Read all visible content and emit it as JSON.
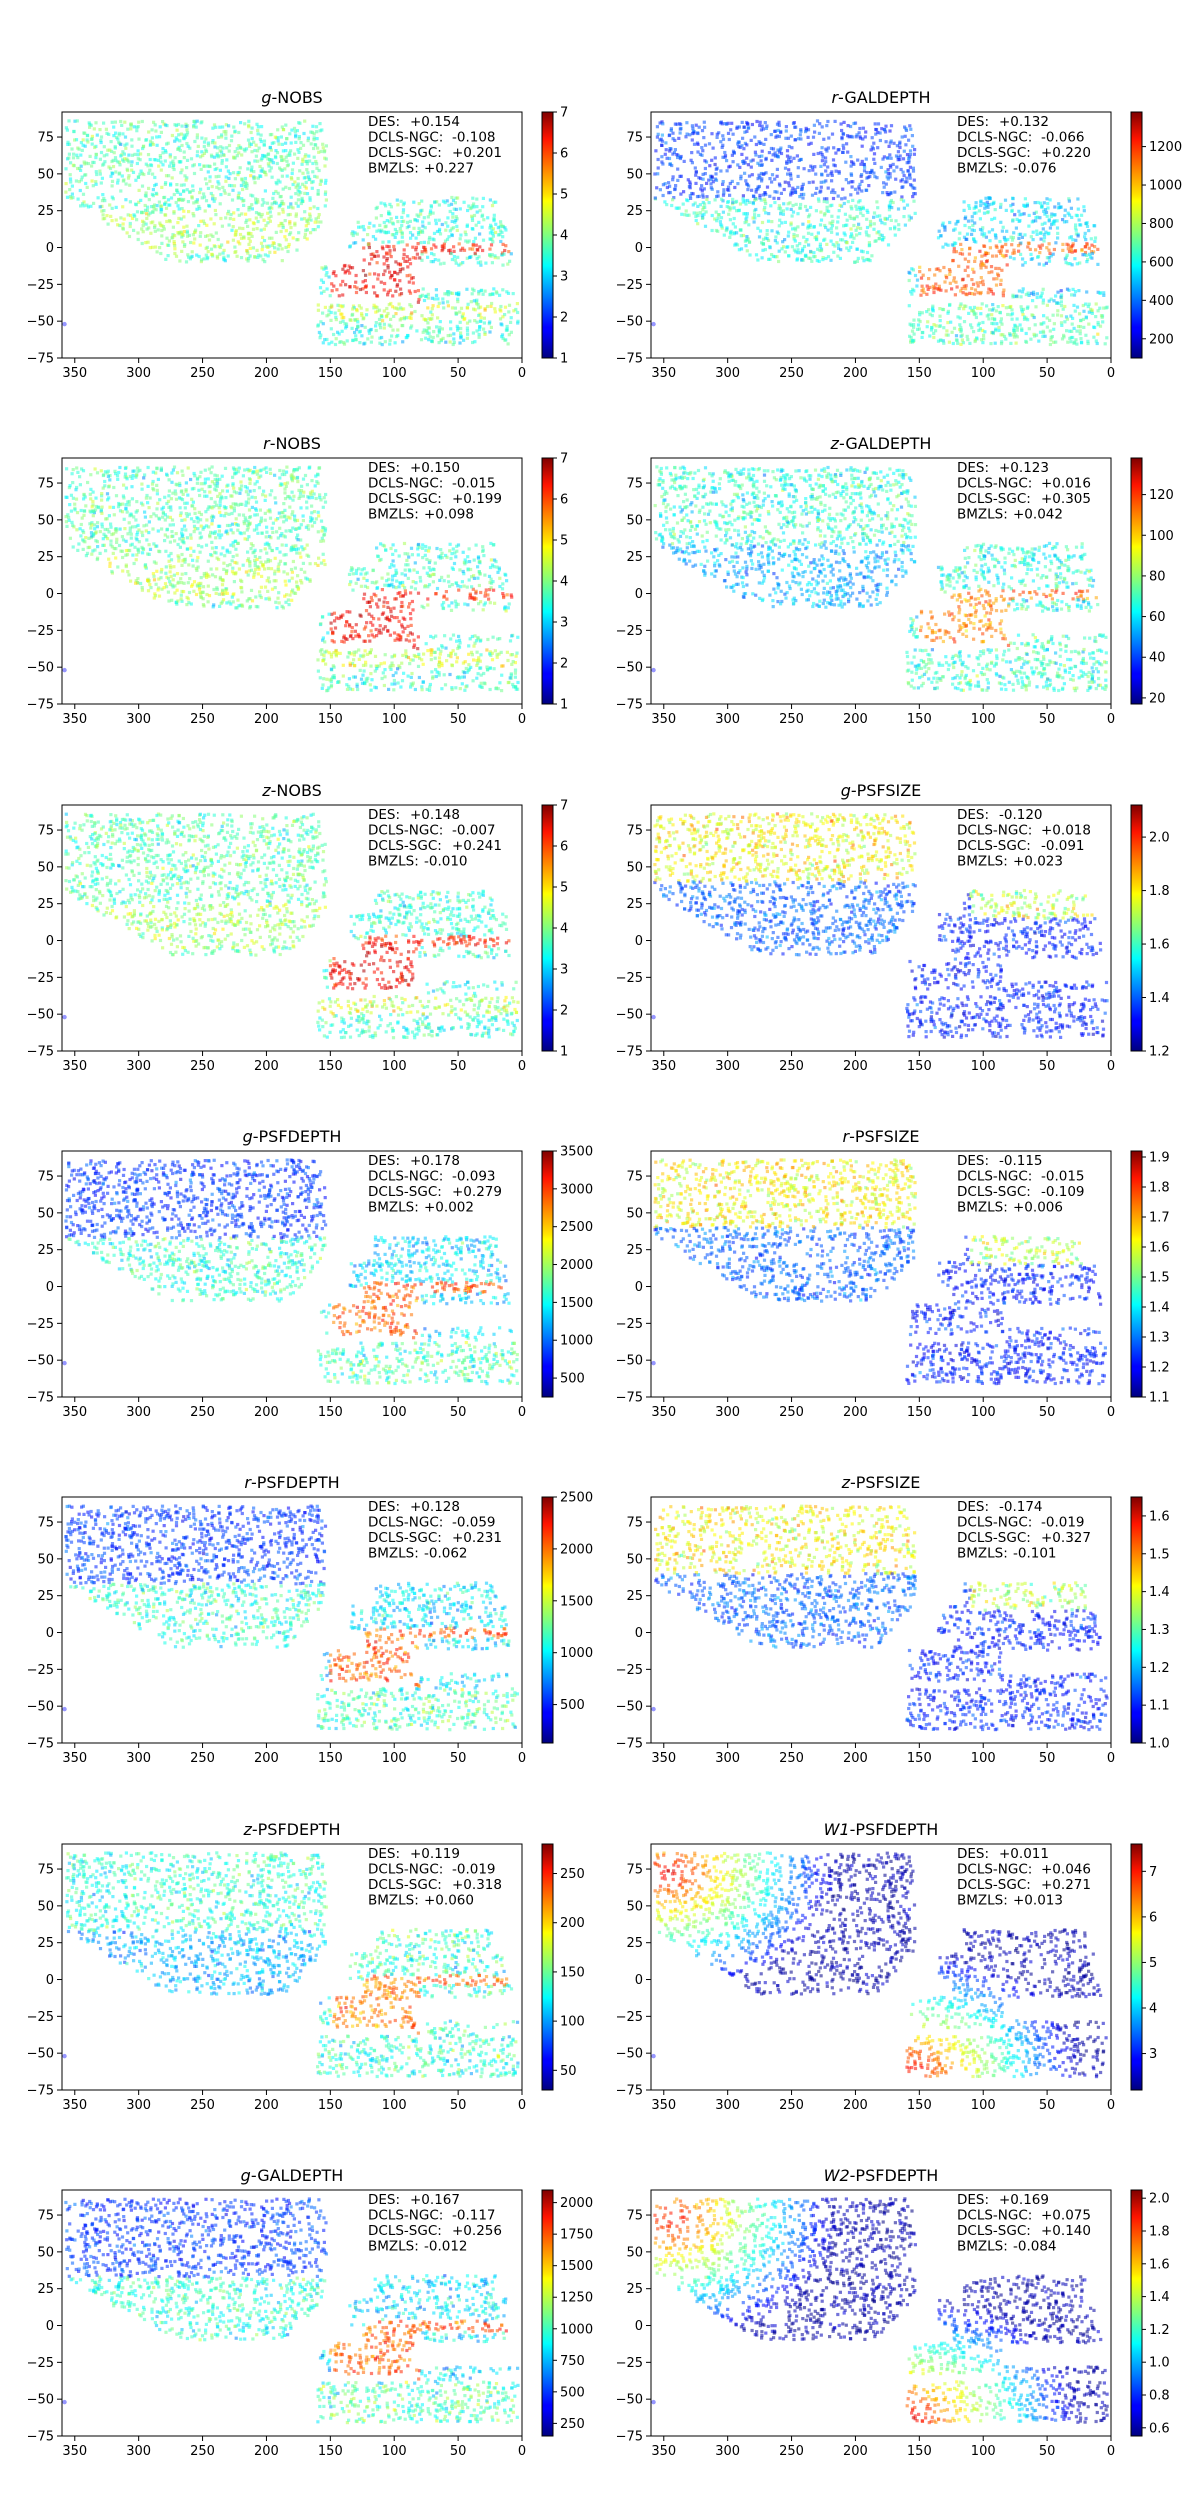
{
  "page": {
    "width": 1200,
    "height": 2500
  },
  "x_ticks": [
    350,
    300,
    250,
    200,
    150,
    100,
    50,
    0
  ],
  "y_ticks": [
    75,
    50,
    25,
    0,
    -25,
    -50,
    -75
  ],
  "colormap": "jet",
  "chart_data": [
    {
      "type": "heatmap",
      "title_prefix": "g",
      "title_suffix": "-NOBS",
      "xlim": [
        360,
        0
      ],
      "ylim": [
        -75,
        92
      ],
      "stats": [
        {
          "label": "DES:",
          "value": "+0.154"
        },
        {
          "label": "DCLS-NGC:",
          "value": "-0.108"
        },
        {
          "label": "DCLS-SGC:",
          "value": "+0.201"
        },
        {
          "label": "BMZLS:",
          "value": "+0.227"
        }
      ],
      "colorbar": {
        "min": 1,
        "max": 7,
        "ticks": [
          1,
          2,
          3,
          4,
          5,
          6,
          7
        ],
        "tick_labels": [
          "1",
          "2",
          "3",
          "4",
          "5",
          "6",
          "7"
        ]
      }
    },
    {
      "type": "heatmap",
      "title_prefix": "r",
      "title_suffix": "-GALDEPTH",
      "xlim": [
        360,
        0
      ],
      "ylim": [
        -75,
        92
      ],
      "stats": [
        {
          "label": "DES:",
          "value": "+0.132"
        },
        {
          "label": "DCLS-NGC:",
          "value": "-0.066"
        },
        {
          "label": "DCLS-SGC:",
          "value": "+0.220"
        },
        {
          "label": "BMZLS:",
          "value": "-0.076"
        }
      ],
      "colorbar": {
        "min": 100,
        "max": 1380,
        "ticks": [
          200,
          400,
          600,
          800,
          1000,
          1200
        ],
        "tick_labels": [
          "200",
          "400",
          "600",
          "800",
          "1000",
          "1200"
        ]
      }
    },
    {
      "type": "heatmap",
      "title_prefix": "r",
      "title_suffix": "-NOBS",
      "xlim": [
        360,
        0
      ],
      "ylim": [
        -75,
        92
      ],
      "stats": [
        {
          "label": "DES:",
          "value": "+0.150"
        },
        {
          "label": "DCLS-NGC:",
          "value": "-0.015"
        },
        {
          "label": "DCLS-SGC:",
          "value": "+0.199"
        },
        {
          "label": "BMZLS:",
          "value": "+0.098"
        }
      ],
      "colorbar": {
        "min": 1,
        "max": 7,
        "ticks": [
          1,
          2,
          3,
          4,
          5,
          6,
          7
        ],
        "tick_labels": [
          "1",
          "2",
          "3",
          "4",
          "5",
          "6",
          "7"
        ]
      }
    },
    {
      "type": "heatmap",
      "title_prefix": "z",
      "title_suffix": "-GALDEPTH",
      "xlim": [
        360,
        0
      ],
      "ylim": [
        -75,
        92
      ],
      "stats": [
        {
          "label": "DES:",
          "value": "+0.123"
        },
        {
          "label": "DCLS-NGC:",
          "value": "+0.016"
        },
        {
          "label": "DCLS-SGC:",
          "value": "+0.305"
        },
        {
          "label": "BMZLS:",
          "value": "+0.042"
        }
      ],
      "colorbar": {
        "min": 17,
        "max": 138,
        "ticks": [
          20,
          40,
          60,
          80,
          100,
          120
        ],
        "tick_labels": [
          "20",
          "40",
          "60",
          "80",
          "100",
          "120"
        ]
      }
    },
    {
      "type": "heatmap",
      "title_prefix": "z",
      "title_suffix": "-NOBS",
      "xlim": [
        360,
        0
      ],
      "ylim": [
        -75,
        92
      ],
      "stats": [
        {
          "label": "DES:",
          "value": "+0.148"
        },
        {
          "label": "DCLS-NGC:",
          "value": "-0.007"
        },
        {
          "label": "DCLS-SGC:",
          "value": "+0.241"
        },
        {
          "label": "BMZLS:",
          "value": "-0.010"
        }
      ],
      "colorbar": {
        "min": 1,
        "max": 7,
        "ticks": [
          1,
          2,
          3,
          4,
          5,
          6,
          7
        ],
        "tick_labels": [
          "1",
          "2",
          "3",
          "4",
          "5",
          "6",
          "7"
        ]
      }
    },
    {
      "type": "heatmap",
      "title_prefix": "g",
      "title_suffix": "-PSFSIZE",
      "xlim": [
        360,
        0
      ],
      "ylim": [
        -75,
        92
      ],
      "stats": [
        {
          "label": "DES:",
          "value": "-0.120"
        },
        {
          "label": "DCLS-NGC:",
          "value": "+0.018"
        },
        {
          "label": "DCLS-SGC:",
          "value": "-0.091"
        },
        {
          "label": "BMZLS:",
          "value": "+0.023"
        }
      ],
      "colorbar": {
        "min": 1.2,
        "max": 2.12,
        "ticks": [
          1.2,
          1.4,
          1.6,
          1.8,
          2.0
        ],
        "tick_labels": [
          "1.2",
          "1.4",
          "1.6",
          "1.8",
          "2.0"
        ]
      }
    },
    {
      "type": "heatmap",
      "title_prefix": "g",
      "title_suffix": "-PSFDEPTH",
      "xlim": [
        360,
        0
      ],
      "ylim": [
        -75,
        92
      ],
      "stats": [
        {
          "label": "DES:",
          "value": "+0.178"
        },
        {
          "label": "DCLS-NGC:",
          "value": "-0.093"
        },
        {
          "label": "DCLS-SGC:",
          "value": "+0.279"
        },
        {
          "label": "BMZLS:",
          "value": "+0.002"
        }
      ],
      "colorbar": {
        "min": 250,
        "max": 3500,
        "ticks": [
          500,
          1000,
          1500,
          2000,
          2500,
          3000,
          3500
        ],
        "tick_labels": [
          "500",
          "1000",
          "1500",
          "2000",
          "2500",
          "3000",
          "3500"
        ]
      }
    },
    {
      "type": "heatmap",
      "title_prefix": "r",
      "title_suffix": "-PSFSIZE",
      "xlim": [
        360,
        0
      ],
      "ylim": [
        -75,
        92
      ],
      "stats": [
        {
          "label": "DES:",
          "value": "-0.115"
        },
        {
          "label": "DCLS-NGC:",
          "value": "-0.015"
        },
        {
          "label": "DCLS-SGC:",
          "value": "-0.109"
        },
        {
          "label": "BMZLS:",
          "value": "+0.006"
        }
      ],
      "colorbar": {
        "min": 1.1,
        "max": 1.92,
        "ticks": [
          1.1,
          1.2,
          1.3,
          1.4,
          1.5,
          1.6,
          1.7,
          1.8,
          1.9
        ],
        "tick_labels": [
          "1.1",
          "1.2",
          "1.3",
          "1.4",
          "1.5",
          "1.6",
          "1.7",
          "1.8",
          "1.9"
        ]
      }
    },
    {
      "type": "heatmap",
      "title_prefix": "r",
      "title_suffix": "-PSFDEPTH",
      "xlim": [
        360,
        0
      ],
      "ylim": [
        -75,
        92
      ],
      "stats": [
        {
          "label": "DES:",
          "value": "+0.128"
        },
        {
          "label": "DCLS-NGC:",
          "value": "-0.059"
        },
        {
          "label": "DCLS-SGC:",
          "value": "+0.231"
        },
        {
          "label": "BMZLS:",
          "value": "-0.062"
        }
      ],
      "colorbar": {
        "min": 130,
        "max": 2500,
        "ticks": [
          500,
          1000,
          1500,
          2000,
          2500
        ],
        "tick_labels": [
          "500",
          "1000",
          "1500",
          "2000",
          "2500"
        ]
      }
    },
    {
      "type": "heatmap",
      "title_prefix": "z",
      "title_suffix": "-PSFSIZE",
      "xlim": [
        360,
        0
      ],
      "ylim": [
        -75,
        92
      ],
      "stats": [
        {
          "label": "DES:",
          "value": "-0.174"
        },
        {
          "label": "DCLS-NGC:",
          "value": "-0.019"
        },
        {
          "label": "DCLS-SGC:",
          "value": "+0.327"
        },
        {
          "label": "BMZLS:",
          "value": "-0.101"
        }
      ],
      "colorbar": {
        "min": 1.0,
        "max": 1.65,
        "ticks": [
          1.0,
          1.1,
          1.2,
          1.3,
          1.4,
          1.5,
          1.6
        ],
        "tick_labels": [
          "1.0",
          "1.1",
          "1.2",
          "1.3",
          "1.4",
          "1.5",
          "1.6"
        ]
      }
    },
    {
      "type": "heatmap",
      "title_prefix": "z",
      "title_suffix": "-PSFDEPTH",
      "xlim": [
        360,
        0
      ],
      "ylim": [
        -75,
        92
      ],
      "stats": [
        {
          "label": "DES:",
          "value": "+0.119"
        },
        {
          "label": "DCLS-NGC:",
          "value": "-0.019"
        },
        {
          "label": "DCLS-SGC:",
          "value": "+0.318"
        },
        {
          "label": "BMZLS:",
          "value": "+0.060"
        }
      ],
      "colorbar": {
        "min": 30,
        "max": 280,
        "ticks": [
          50,
          100,
          150,
          200,
          250
        ],
        "tick_labels": [
          "50",
          "100",
          "150",
          "200",
          "250"
        ]
      }
    },
    {
      "type": "heatmap",
      "title_prefix": "W1",
      "title_suffix": "-PSFDEPTH",
      "xlim": [
        360,
        0
      ],
      "ylim": [
        -75,
        92
      ],
      "stats": [
        {
          "label": "DES:",
          "value": "+0.011"
        },
        {
          "label": "DCLS-NGC:",
          "value": "+0.046"
        },
        {
          "label": "DCLS-SGC:",
          "value": "+0.271"
        },
        {
          "label": "BMZLS:",
          "value": "+0.013"
        }
      ],
      "colorbar": {
        "min": 2.2,
        "max": 7.6,
        "ticks": [
          3,
          4,
          5,
          6,
          7
        ],
        "tick_labels": [
          "3",
          "4",
          "5",
          "6",
          "7"
        ]
      }
    },
    {
      "type": "heatmap",
      "title_prefix": "g",
      "title_suffix": "-GALDEPTH",
      "xlim": [
        360,
        0
      ],
      "ylim": [
        -75,
        92
      ],
      "stats": [
        {
          "label": "DES:",
          "value": "+0.167"
        },
        {
          "label": "DCLS-NGC:",
          "value": "-0.117"
        },
        {
          "label": "DCLS-SGC:",
          "value": "+0.256"
        },
        {
          "label": "BMZLS:",
          "value": "-0.012"
        }
      ],
      "colorbar": {
        "min": 150,
        "max": 2100,
        "ticks": [
          250,
          500,
          750,
          1000,
          1250,
          1500,
          1750,
          2000
        ],
        "tick_labels": [
          "250",
          "500",
          "750",
          "1000",
          "1250",
          "1500",
          "1750",
          "2000"
        ]
      }
    },
    {
      "type": "heatmap",
      "title_prefix": "W2",
      "title_suffix": "-PSFDEPTH",
      "xlim": [
        360,
        0
      ],
      "ylim": [
        -75,
        92
      ],
      "stats": [
        {
          "label": "DES:",
          "value": "+0.169"
        },
        {
          "label": "DCLS-NGC:",
          "value": "+0.075"
        },
        {
          "label": "DCLS-SGC:",
          "value": "+0.140"
        },
        {
          "label": "BMZLS:",
          "value": "-0.084"
        }
      ],
      "colorbar": {
        "min": 0.55,
        "max": 2.05,
        "ticks": [
          0.6,
          0.8,
          1.0,
          1.2,
          1.4,
          1.6,
          1.8,
          2.0
        ],
        "tick_labels": [
          "0.6",
          "0.8",
          "1.0",
          "1.2",
          "1.4",
          "1.6",
          "1.8",
          "2.0"
        ]
      }
    }
  ]
}
